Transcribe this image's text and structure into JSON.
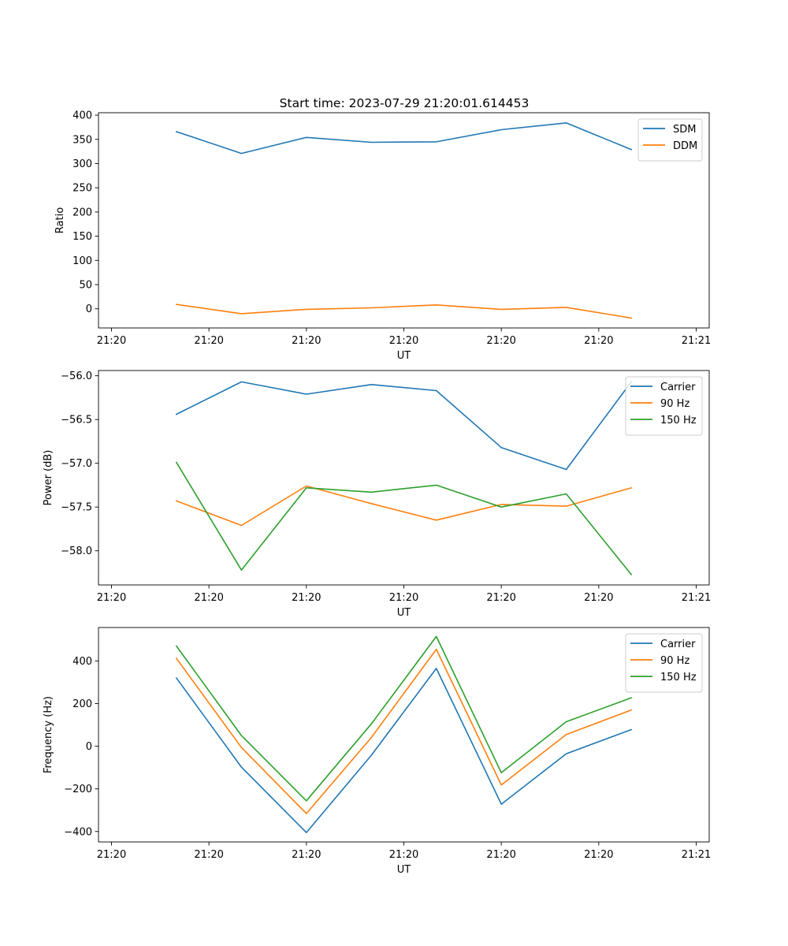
{
  "figure_title": "Start time: 2023-07-29 21:20:01.614453",
  "chart_data": [
    {
      "type": "line",
      "title": "Start time: 2023-07-29 21:20:01.614453",
      "xlabel": "UT",
      "ylabel": "Ratio",
      "xlim": [
        -0.2,
        9.2
      ],
      "ylim": [
        -39.5,
        405
      ],
      "x": [
        1,
        2,
        3,
        4,
        5,
        6,
        7,
        8
      ],
      "xticks": [
        0,
        1.5,
        3,
        4.5,
        6,
        7.5,
        9
      ],
      "xtick_labels": [
        "21:20",
        "21:20",
        "21:20",
        "21:20",
        "21:20",
        "21:20",
        "21:21"
      ],
      "yticks": [
        0,
        50,
        100,
        150,
        200,
        250,
        300,
        350,
        400
      ],
      "ytick_labels": [
        "0",
        "50",
        "100",
        "150",
        "200",
        "250",
        "300",
        "350",
        "400"
      ],
      "legend_position": "top-right",
      "series": [
        {
          "name": "SDM",
          "color": "#1f77b4",
          "values": [
            366,
            321,
            354,
            344,
            345,
            370,
            384,
            329
          ]
        },
        {
          "name": "DDM",
          "color": "#ff7f0e",
          "values": [
            9,
            -10,
            -1,
            2,
            8,
            -1,
            3,
            -19
          ]
        }
      ]
    },
    {
      "type": "line",
      "title": "",
      "xlabel": "UT",
      "ylabel": "Power (dB)",
      "xlim": [
        -0.2,
        9.2
      ],
      "ylim": [
        -58.39,
        -55.94
      ],
      "x": [
        1,
        2,
        3,
        4,
        5,
        6,
        7,
        8
      ],
      "xticks": [
        0,
        1.5,
        3,
        4.5,
        6,
        7.5,
        9
      ],
      "xtick_labels": [
        "21:20",
        "21:20",
        "21:20",
        "21:20",
        "21:20",
        "21:20",
        "21:21"
      ],
      "yticks": [
        -56.0,
        -56.5,
        -57.0,
        -57.5,
        -58.0
      ],
      "ytick_labels": [
        "−56.0",
        "−56.5",
        "−57.0",
        "−57.5",
        "−58.0"
      ],
      "legend_position": "top-right",
      "series": [
        {
          "name": "Carrier",
          "color": "#1f77b4",
          "values": [
            -56.44,
            -56.07,
            -56.21,
            -56.1,
            -56.17,
            -56.82,
            -57.07,
            -56.07
          ]
        },
        {
          "name": "90 Hz",
          "color": "#ff7f0e",
          "values": [
            -57.43,
            -57.71,
            -57.26,
            -57.46,
            -57.65,
            -57.47,
            -57.49,
            -57.28
          ]
        },
        {
          "name": "150 Hz",
          "color": "#2ca02c",
          "values": [
            -56.99,
            -58.22,
            -57.28,
            -57.33,
            -57.25,
            -57.5,
            -57.35,
            -58.27
          ]
        }
      ]
    },
    {
      "type": "line",
      "title": "",
      "xlabel": "UT",
      "ylabel": "Frequency (Hz)",
      "xlim": [
        -0.2,
        9.2
      ],
      "ylim": [
        -449,
        557
      ],
      "x": [
        1,
        2,
        3,
        4,
        5,
        6,
        7,
        8
      ],
      "xticks": [
        0,
        1.5,
        3,
        4.5,
        6,
        7.5,
        9
      ],
      "xtick_labels": [
        "21:20",
        "21:20",
        "21:20",
        "21:20",
        "21:20",
        "21:20",
        "21:21"
      ],
      "yticks": [
        400,
        200,
        0,
        -200,
        -400
      ],
      "ytick_labels": [
        "400",
        "200",
        "0",
        "−200",
        "−400"
      ],
      "legend_position": "top-right",
      "series": [
        {
          "name": "Carrier",
          "color": "#1f77b4",
          "values": [
            320,
            -98,
            -405,
            -42,
            365,
            -272,
            -35,
            78
          ]
        },
        {
          "name": "90 Hz",
          "color": "#ff7f0e",
          "values": [
            412,
            -6,
            -316,
            41,
            455,
            -182,
            55,
            170
          ]
        },
        {
          "name": "150 Hz",
          "color": "#2ca02c",
          "values": [
            470,
            50,
            -256,
            105,
            515,
            -124,
            115,
            227
          ]
        }
      ]
    }
  ]
}
